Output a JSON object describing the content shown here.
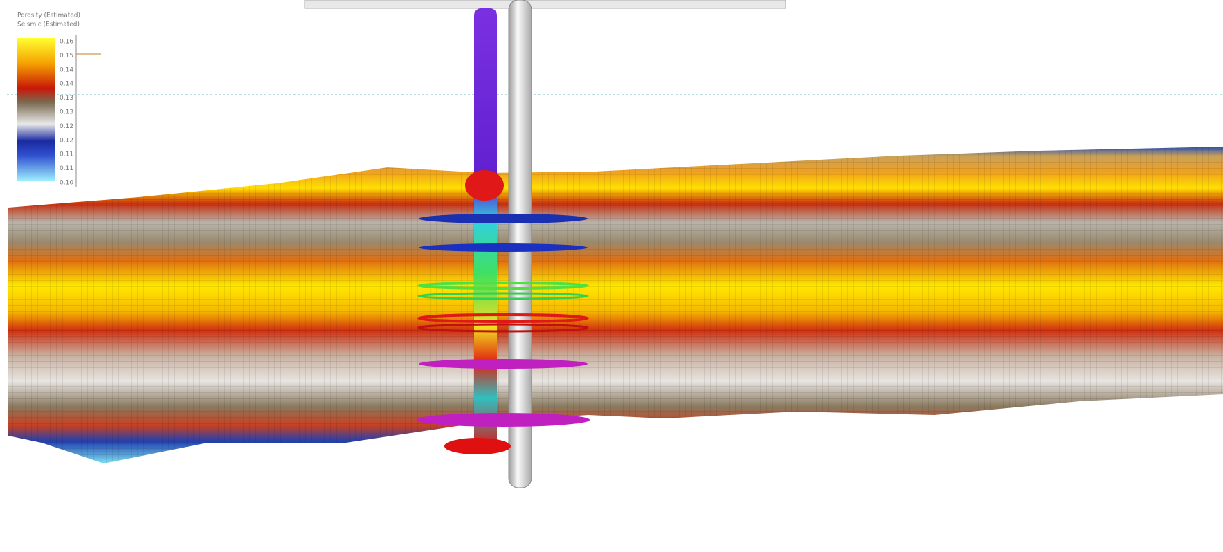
{
  "legend": {
    "title_lines": [
      "Porosity (Estimated)",
      "Seismic (Estimated)"
    ],
    "ticks": [
      "0.16",
      "0.15",
      "0.14",
      "0.14",
      "0.13",
      "0.13",
      "0.12",
      "0.12",
      "0.11",
      "0.11",
      "0.10"
    ]
  }
}
